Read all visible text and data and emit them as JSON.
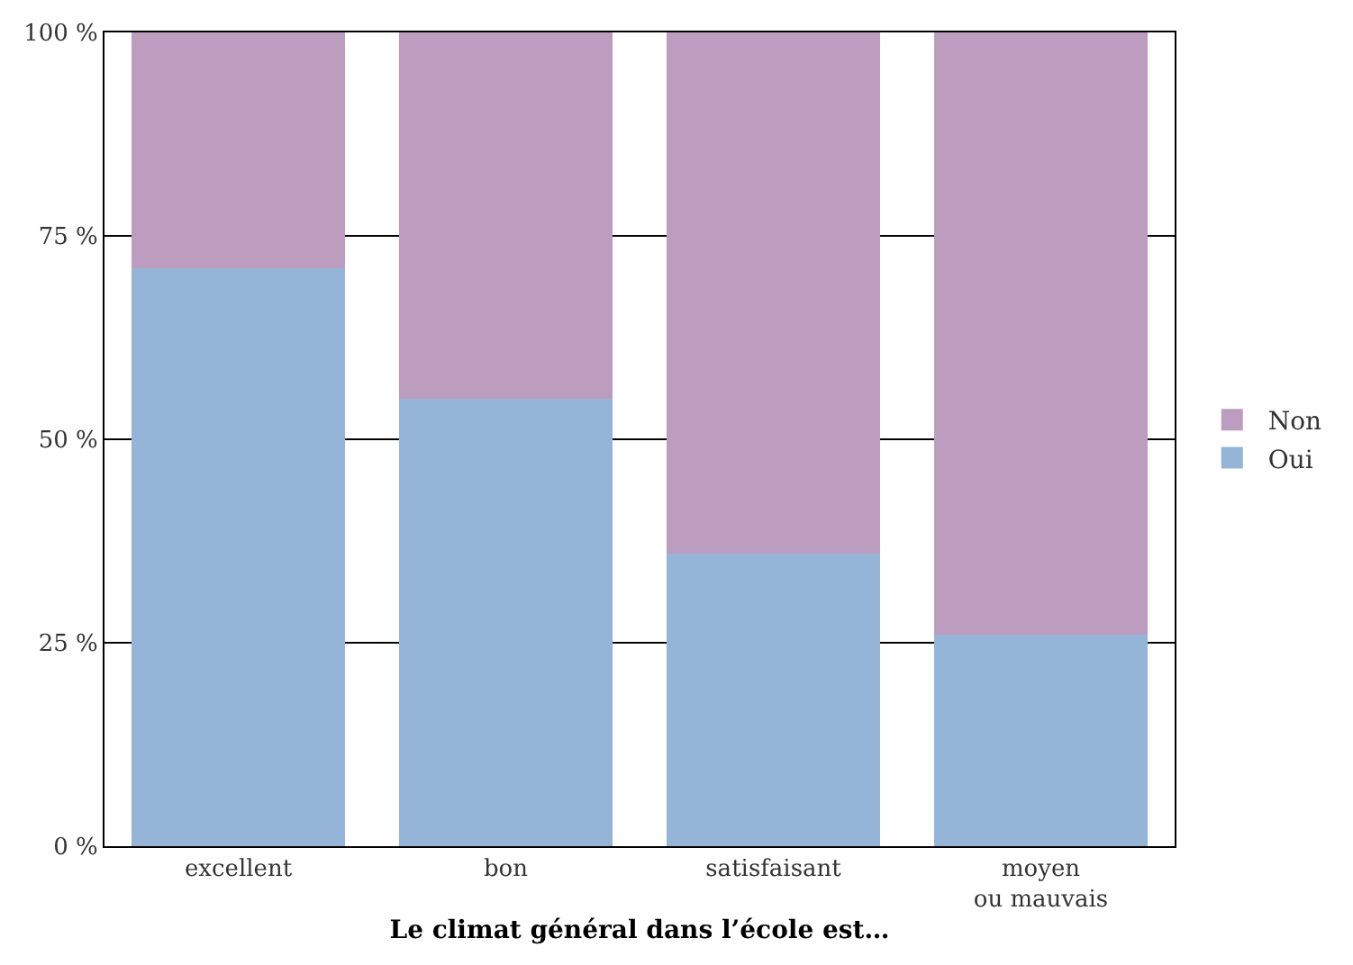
{
  "chart_data": {
    "type": "bar",
    "stacked": true,
    "xlabel": "Le climat général dans l’école est…",
    "categories": [
      "excellent",
      "bon",
      "satisfaisant",
      "moyen\nou mauvais"
    ],
    "series": [
      {
        "name": "Oui",
        "color": "#94b5d8",
        "values": [
          71,
          55,
          36,
          26
        ]
      },
      {
        "name": "Non",
        "color": "#bc9dbf",
        "values": [
          29,
          45,
          64,
          74
        ]
      }
    ],
    "ylim": [
      0,
      100
    ],
    "yticks": [
      {
        "value": 0,
        "label": "0 %"
      },
      {
        "value": 25,
        "label": "25 %"
      },
      {
        "value": 50,
        "label": "50 %"
      },
      {
        "value": 75,
        "label": "75 %"
      },
      {
        "value": 100,
        "label": "100 %"
      }
    ],
    "grid": "y",
    "legend": "right"
  }
}
